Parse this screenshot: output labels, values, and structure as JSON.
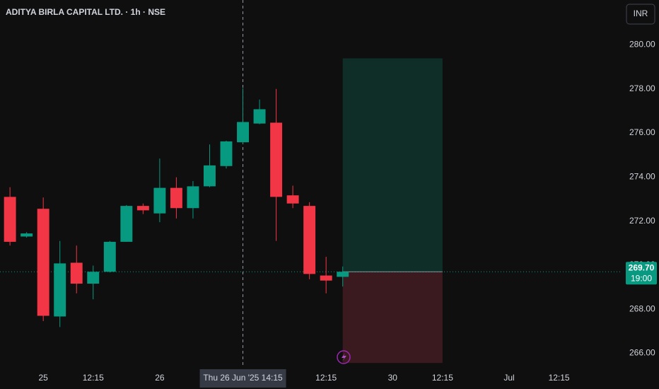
{
  "chart_data": {
    "type": "candlestick",
    "title": "ADITYA BIRLA CAPITAL LTD. · 1h · NSE",
    "currency": "INR",
    "series": [
      {
        "name": "ADITYA BIRLA CAPITAL LTD.",
        "up_color": "#089981",
        "down_color": "#f23645",
        "open": [
          273.1,
          271.3,
          272.56,
          267.67,
          270.11,
          269.16,
          269.7,
          271.06,
          272.69,
          272.35,
          273.51,
          272.59,
          273.58,
          274.5,
          275.58,
          276.43,
          276.47,
          273.17,
          272.69,
          269.53,
          269.47
        ],
        "high": [
          273.54,
          271.5,
          273.07,
          271.1,
          270.89,
          269.98,
          271.1,
          272.73,
          272.8,
          274.84,
          273.99,
          273.82,
          275.48,
          275.65,
          278.03,
          277.52,
          278.0,
          273.61,
          272.86,
          270.38,
          269.94
        ],
        "low": [
          270.89,
          271.25,
          267.46,
          267.19,
          268.72,
          268.45,
          269.67,
          271.06,
          272.32,
          271.95,
          272.12,
          272.12,
          273.54,
          274.39,
          275.51,
          276.4,
          271.1,
          272.59,
          269.36,
          268.72,
          269.03
        ],
        "close": [
          271.06,
          271.44,
          267.7,
          270.08,
          269.16,
          269.7,
          271.06,
          272.69,
          272.49,
          273.51,
          272.59,
          273.58,
          274.53,
          275.62,
          276.5,
          277.08,
          273.1,
          272.8,
          269.6,
          269.3,
          269.7
        ]
      }
    ],
    "ylim": [
      265.34,
      282.04
    ],
    "yticks": [
      {
        "value": 266,
        "label": "266.00"
      },
      {
        "value": 268,
        "label": "268.00"
      },
      {
        "value": 270,
        "label": "270.00"
      },
      {
        "value": 272,
        "label": "272.00"
      },
      {
        "value": 274,
        "label": "274.00"
      },
      {
        "value": 276,
        "label": "276.00"
      },
      {
        "value": 278,
        "label": "278.00"
      },
      {
        "value": 280,
        "label": "280.00"
      }
    ],
    "xlim": [
      -0.6,
      36.8
    ],
    "xticks": [
      {
        "value": 2,
        "label": "25"
      },
      {
        "value": 5,
        "label": "12:15"
      },
      {
        "value": 9,
        "label": "26"
      },
      {
        "value": 19,
        "label": "12:15"
      },
      {
        "value": 23,
        "label": "30"
      },
      {
        "value": 26,
        "label": "12:15"
      },
      {
        "value": 30,
        "label": "Jul"
      },
      {
        "value": 33,
        "label": "12:15"
      }
    ],
    "crosshair": {
      "x": 14,
      "label": "Thu 26 Jun '25   14:15"
    },
    "last_price": {
      "value": 269.7,
      "label": "269.70"
    },
    "countdown": "19:00",
    "position": {
      "start": 20,
      "end": 26,
      "entry": 269.7,
      "target": 279.39,
      "stop": 265.56
    }
  }
}
